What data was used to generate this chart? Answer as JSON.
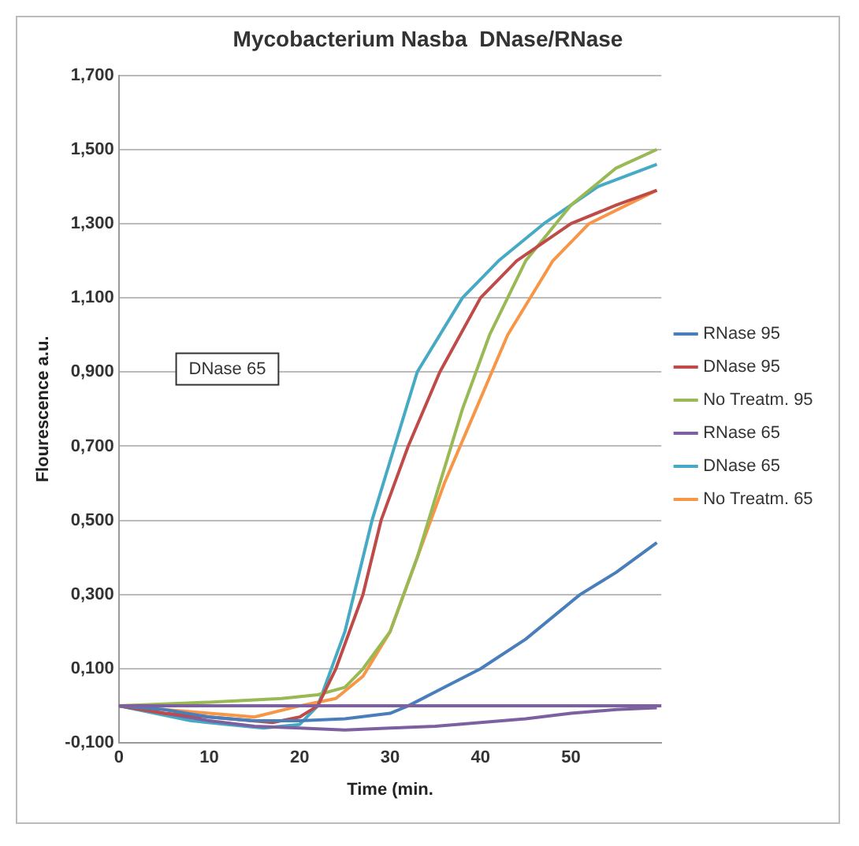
{
  "chart_data": {
    "type": "line",
    "title": "Mycobacterium Nasba  DNase/RNase",
    "xlabel": "Time (min.",
    "ylabel": "Flourescence a.u.",
    "xlim": [
      0,
      60
    ],
    "xticks": [
      0,
      10,
      20,
      30,
      40,
      50
    ],
    "ylim": [
      -0.1,
      1.7
    ],
    "yticks": [
      {
        "value": -0.1,
        "label": "-0,100"
      },
      {
        "value": 0.1,
        "label": "0,100"
      },
      {
        "value": 0.3,
        "label": "0,300"
      },
      {
        "value": 0.5,
        "label": "0,500"
      },
      {
        "value": 0.7,
        "label": "0,700"
      },
      {
        "value": 0.9,
        "label": "0,900"
      },
      {
        "value": 1.1,
        "label": "1,100"
      },
      {
        "value": 1.3,
        "label": "1,300"
      },
      {
        "value": 1.5,
        "label": "1,500"
      },
      {
        "value": 1.7,
        "label": "1,700"
      }
    ],
    "grid": "y",
    "legend": "right",
    "marker": "none",
    "line_style": "solid",
    "ref_lines": [
      {
        "axis": "y",
        "value": 0,
        "color": "#7d60a0"
      }
    ],
    "annotations": [
      "DNase 65"
    ],
    "series": [
      {
        "name": "RNase 95",
        "color": "#4a7ebb",
        "x": [
          0,
          5,
          10,
          15,
          20,
          25,
          30,
          32,
          36,
          40,
          45,
          51,
          55,
          59.5
        ],
        "values": [
          0,
          -0.01,
          -0.03,
          -0.04,
          -0.04,
          -0.035,
          -0.02,
          0,
          0.05,
          0.1,
          0.18,
          0.3,
          0.36,
          0.44
        ]
      },
      {
        "name": "DNase 95",
        "color": "#be4b48",
        "x": [
          0,
          5,
          10,
          17,
          20,
          22,
          24,
          27,
          29,
          32,
          35.5,
          40,
          44,
          50,
          55,
          59.5
        ],
        "values": [
          0,
          -0.02,
          -0.03,
          -0.045,
          -0.03,
          0,
          0.1,
          0.3,
          0.5,
          0.7,
          0.9,
          1.1,
          1.2,
          1.3,
          1.35,
          1.39
        ]
      },
      {
        "name": "No Treatm. 95",
        "color": "#98b954",
        "x": [
          0,
          5,
          10,
          18,
          22,
          25,
          27,
          30,
          33,
          35.5,
          38,
          41,
          45,
          50,
          55,
          59.5
        ],
        "values": [
          0,
          0.005,
          0.01,
          0.02,
          0.03,
          0.05,
          0.1,
          0.2,
          0.4,
          0.6,
          0.8,
          1.0,
          1.2,
          1.35,
          1.45,
          1.5
        ]
      },
      {
        "name": "RNase 65",
        "color": "#7d60a0",
        "x": [
          0,
          5,
          10,
          15,
          20,
          25,
          30,
          35,
          40,
          45,
          50,
          55,
          59.5
        ],
        "values": [
          0,
          -0.02,
          -0.04,
          -0.055,
          -0.06,
          -0.065,
          -0.06,
          -0.055,
          -0.045,
          -0.035,
          -0.02,
          -0.01,
          -0.005
        ]
      },
      {
        "name": "DNase 65",
        "color": "#46aac5",
        "x": [
          0,
          4,
          8,
          12,
          16,
          20,
          22,
          25,
          28,
          30.5,
          33,
          38,
          42,
          47,
          53,
          59.5
        ],
        "values": [
          0,
          -0.02,
          -0.04,
          -0.05,
          -0.06,
          -0.05,
          0,
          0.2,
          0.5,
          0.7,
          0.9,
          1.1,
          1.2,
          1.3,
          1.4,
          1.46
        ]
      },
      {
        "name": "No Treatm. 65",
        "color": "#f79646",
        "x": [
          0,
          5,
          10,
          15,
          20,
          24,
          27,
          30,
          33,
          36,
          39.5,
          43,
          48,
          52,
          59.5
        ],
        "values": [
          0,
          -0.01,
          -0.02,
          -0.03,
          0,
          0.02,
          0.08,
          0.2,
          0.4,
          0.6,
          0.8,
          1.0,
          1.2,
          1.3,
          1.39
        ]
      }
    ]
  }
}
